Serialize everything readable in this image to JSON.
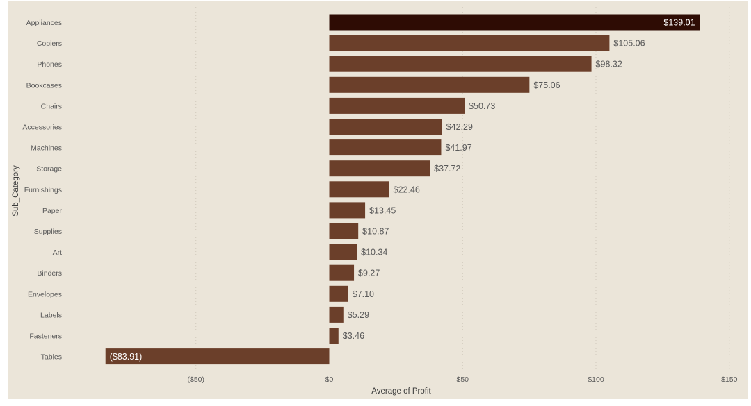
{
  "chart_data": {
    "type": "bar",
    "orientation": "horizontal",
    "categories": [
      "Appliances",
      "Copiers",
      "Phones",
      "Bookcases",
      "Chairs",
      "Accessories",
      "Machines",
      "Storage",
      "Furnishings",
      "Paper",
      "Supplies",
      "Art",
      "Binders",
      "Envelopes",
      "Labels",
      "Fasteners",
      "Tables"
    ],
    "values": [
      139.01,
      105.06,
      98.32,
      75.06,
      50.73,
      42.29,
      41.97,
      37.72,
      22.46,
      13.45,
      10.87,
      10.34,
      9.27,
      7.1,
      5.29,
      3.46,
      -83.91
    ],
    "data_labels": [
      "$139.01",
      "$105.06",
      "$98.32",
      "$75.06",
      "$50.73",
      "$42.29",
      "$41.97",
      "$37.72",
      "$22.46",
      "$13.45",
      "$10.87",
      "$10.34",
      "$9.27",
      "$7.10",
      "$5.29",
      "$3.46",
      "($83.91)"
    ],
    "xlabel": "Average of Profit",
    "ylabel": "Sub_Category",
    "xlim": [
      -84,
      150
    ],
    "xticks": [
      -50,
      0,
      50,
      100,
      150
    ],
    "xtick_labels": [
      "($50)",
      "$0",
      "$50",
      "$100",
      "$150"
    ],
    "grid": true,
    "colors": {
      "bar": "#6b3f2a",
      "highlight": "#2e0c04",
      "background": "#ebe5d9"
    },
    "highlight_index": 0
  }
}
